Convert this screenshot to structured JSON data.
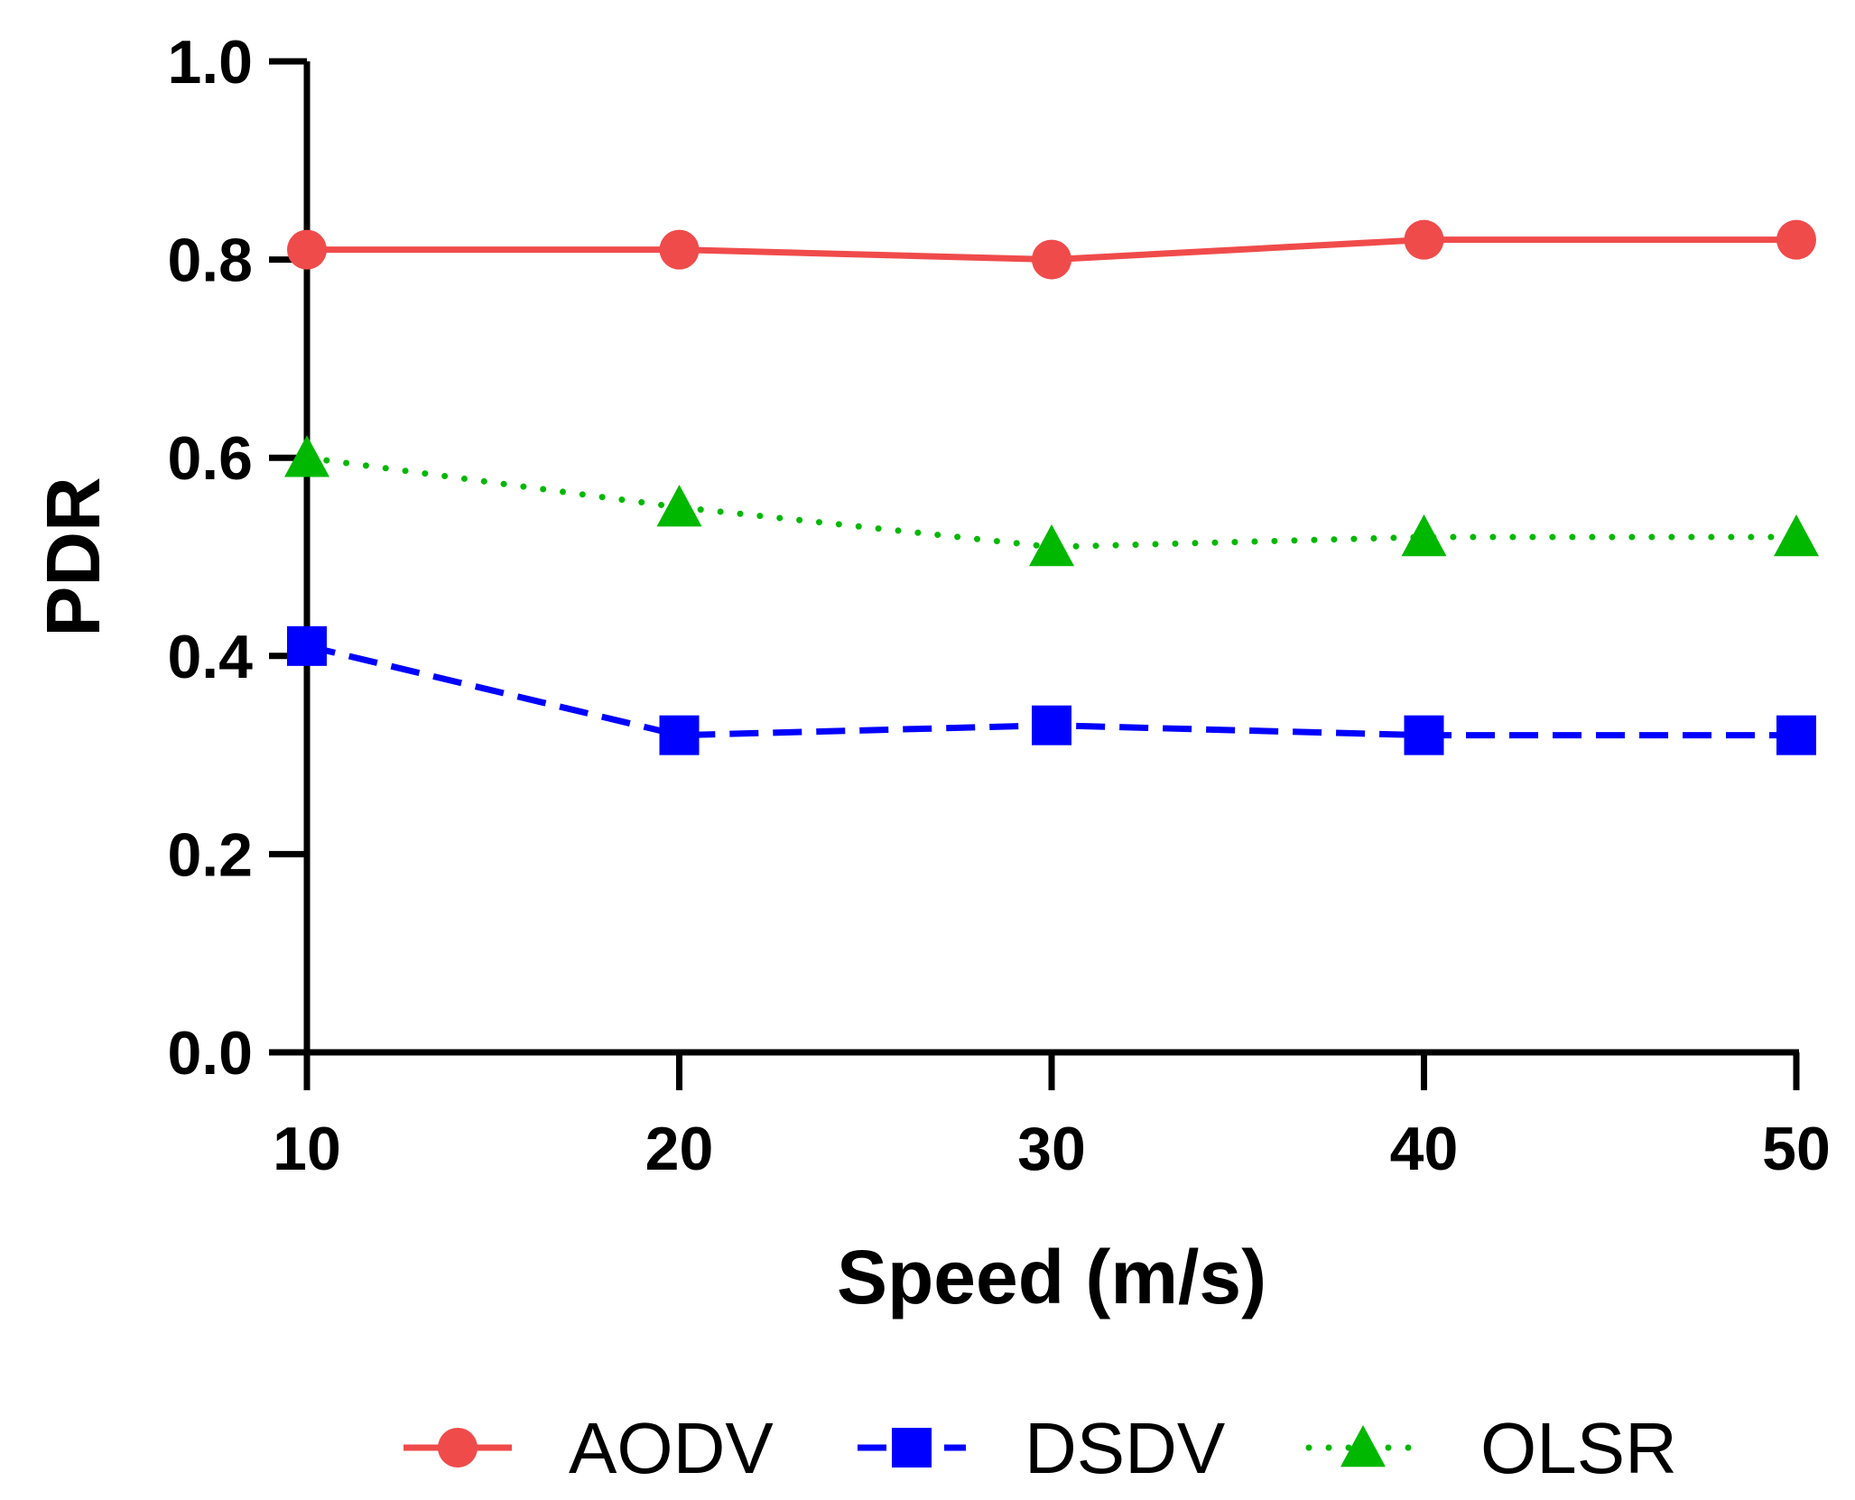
{
  "chart_data": {
    "type": "line",
    "title": "",
    "xlabel": "Speed (m/s)",
    "ylabel": "PDR",
    "x": [
      10,
      20,
      30,
      40,
      50
    ],
    "xlim": [
      10,
      50
    ],
    "ylim": [
      0.0,
      1.0
    ],
    "xticks": [
      "10",
      "20",
      "30",
      "40",
      "50"
    ],
    "yticks": [
      "0.0",
      "0.2",
      "0.4",
      "0.6",
      "0.8",
      "1.0"
    ],
    "grid": false,
    "legend_position": "bottom",
    "series": [
      {
        "name": "AODV",
        "values": [
          0.81,
          0.81,
          0.8,
          0.82,
          0.82
        ],
        "color": "#f04b4b",
        "marker": "circle",
        "line_style": "solid"
      },
      {
        "name": "DSDV",
        "values": [
          0.41,
          0.32,
          0.33,
          0.32,
          0.32
        ],
        "color": "#0000ff",
        "marker": "square",
        "line_style": "dashed"
      },
      {
        "name": "OLSR",
        "values": [
          0.6,
          0.55,
          0.51,
          0.52,
          0.52
        ],
        "color": "#00b800",
        "marker": "triangle",
        "line_style": "dotted"
      }
    ]
  }
}
